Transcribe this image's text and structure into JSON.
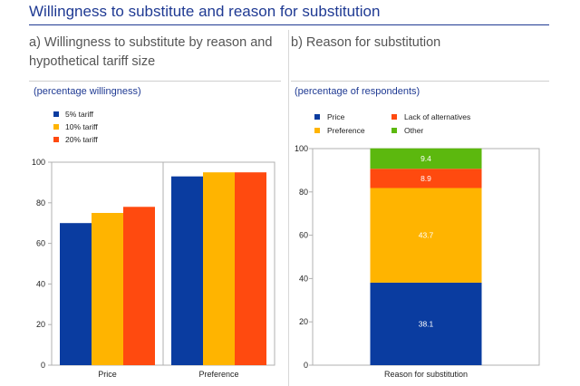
{
  "header": {
    "title": "Willingness to substitute and reason for substitution"
  },
  "panel_a": {
    "title": "a) Willingness to substitute by reason and hypothetical tariff size",
    "subtitle": "(percentage willingness)"
  },
  "panel_b": {
    "title": "b) Reason for substitution",
    "subtitle": "(percentage of respondents)"
  },
  "colors": {
    "blue": "#0a3ca0",
    "yellow": "#ffb400",
    "orange": "#ff4a0f",
    "green": "#5cb80e"
  },
  "chart_data": [
    {
      "type": "bar",
      "categories": [
        "Price",
        "Preference"
      ],
      "series": [
        {
          "name": "5% tariff",
          "values": [
            70,
            93
          ],
          "color": "#0a3ca0"
        },
        {
          "name": "10% tariff",
          "values": [
            75,
            95
          ],
          "color": "#ffb400"
        },
        {
          "name": "20% tariff",
          "values": [
            78,
            95
          ],
          "color": "#ff4a0f"
        }
      ],
      "ylim": [
        0,
        100
      ],
      "yticks": [
        0,
        20,
        40,
        60,
        80,
        100
      ],
      "legend": "top-left"
    },
    {
      "type": "bar",
      "stacked": true,
      "categories": [
        "Reason for substitution"
      ],
      "series": [
        {
          "name": "Price",
          "values": [
            38.1
          ],
          "color": "#0a3ca0",
          "label": "38.1"
        },
        {
          "name": "Preference",
          "values": [
            43.7
          ],
          "color": "#ffb400",
          "label": "43.7"
        },
        {
          "name": "Lack of alternatives",
          "values": [
            8.9
          ],
          "color": "#ff4a0f",
          "label": "8.9"
        },
        {
          "name": "Other",
          "values": [
            9.4
          ],
          "color": "#5cb80e",
          "label": "9.4"
        }
      ],
      "ylim": [
        0,
        100
      ],
      "yticks": [
        0,
        20,
        40,
        60,
        80,
        100
      ],
      "legend": "top"
    }
  ]
}
